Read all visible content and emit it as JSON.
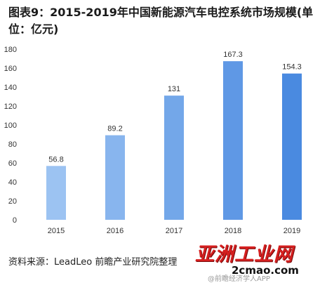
{
  "title": "图表9：2015-2019年中国新能源汽车电控系统市场规模(单位：亿元)",
  "source": "资料来源：LeadLeo 前瞻产业研究院整理",
  "watermark": {
    "logo_text": "亚洲工业网",
    "site": "2cmao.com",
    "overlay": "@前瞻经济学人APP"
  },
  "colors": {
    "bar_light": "#9cc3f2",
    "bar_dark": "#4a8ae0",
    "axis_text": "#333333"
  },
  "chart_data": {
    "type": "bar",
    "title": "图表9：2015-2019年中国新能源汽车电控系统市场规模(单位：亿元)",
    "categories": [
      "2015",
      "2016",
      "2017",
      "2018",
      "2019"
    ],
    "values": [
      56.8,
      89.2,
      131,
      167.3,
      154.3
    ],
    "value_labels": [
      "56.8",
      "89.2",
      "131",
      "167.3",
      "154.3"
    ],
    "xlabel": "",
    "ylabel": "",
    "ylim": [
      0,
      180
    ],
    "yticks": [
      "0",
      "20",
      "40",
      "60",
      "80",
      "100",
      "120",
      "140",
      "160",
      "180"
    ],
    "grid": false,
    "legend": "none"
  }
}
